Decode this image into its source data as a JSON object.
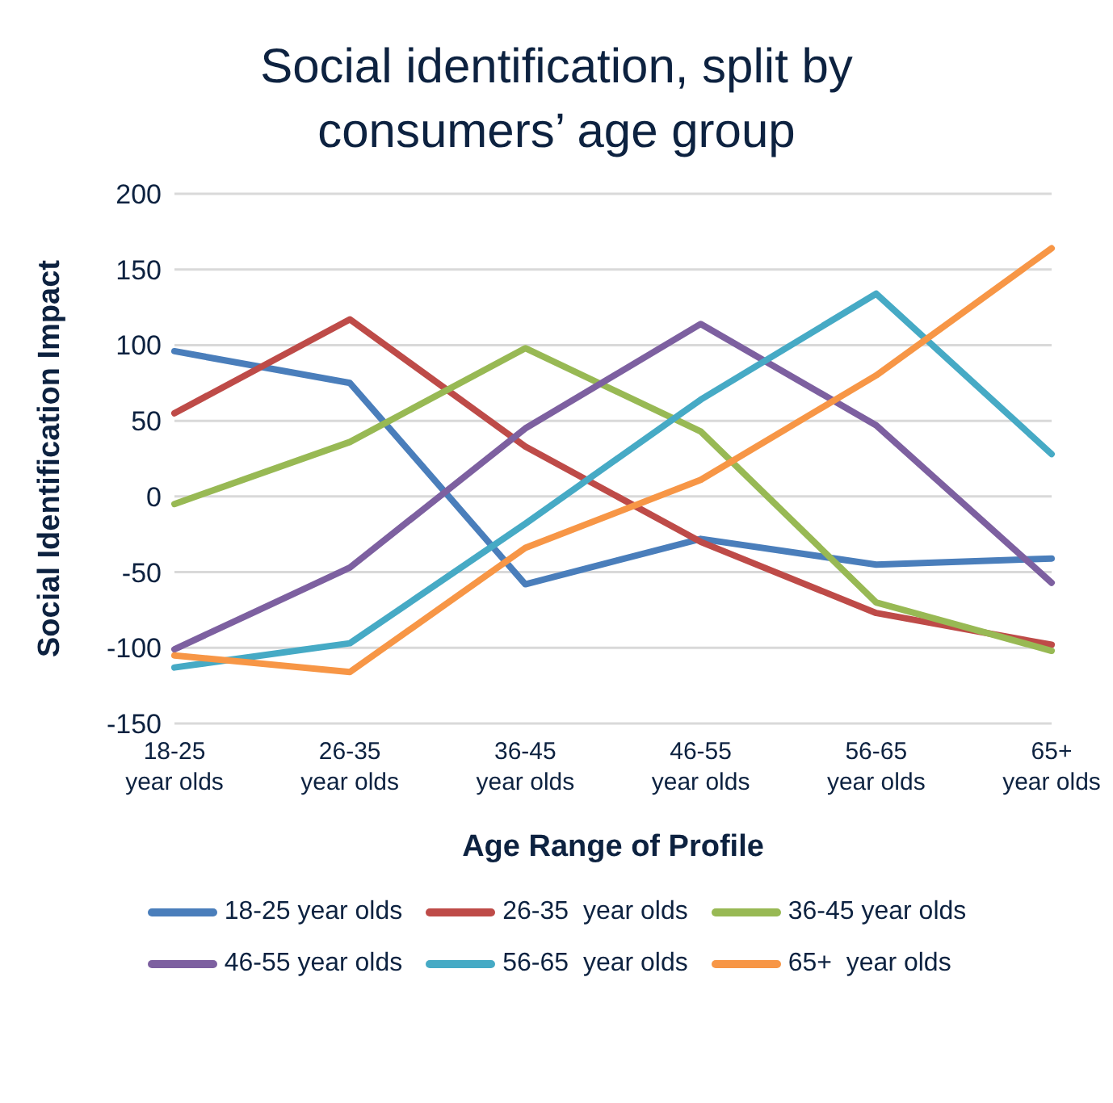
{
  "chart_data": {
    "type": "line",
    "title": "Social identification, split by consumers’ age group",
    "xlabel": "Age Range of Profile",
    "ylabel": "Social Identification Impact",
    "categories": [
      "18-25 year olds",
      "26-35 year olds",
      "36-45 year olds",
      "46-55 year olds",
      "56-65 year olds",
      "65+ year olds"
    ],
    "series": [
      {
        "name": "18-25 year olds",
        "color": "#4a7ebb",
        "values": [
          96,
          75,
          -58,
          -28,
          -45,
          -41
        ]
      },
      {
        "name": "26-35  year olds",
        "color": "#be4b48",
        "values": [
          55,
          117,
          33,
          -30,
          -77,
          -98
        ]
      },
      {
        "name": "36-45 year olds",
        "color": "#98b954",
        "values": [
          -5,
          36,
          98,
          43,
          -70,
          -102
        ]
      },
      {
        "name": "46-55 year olds",
        "color": "#7d60a0",
        "values": [
          -101,
          -47,
          45,
          114,
          47,
          -57
        ]
      },
      {
        "name": "56-65  year olds",
        "color": "#46aac5",
        "values": [
          -113,
          -97,
          -18,
          64,
          134,
          28
        ]
      },
      {
        "name": "65+  year olds",
        "color": "#f79646",
        "values": [
          -105,
          -116,
          -34,
          11,
          80,
          164
        ]
      }
    ],
    "ylim": [
      -150,
      200
    ],
    "yticks": [
      -150,
      -100,
      -50,
      0,
      50,
      100,
      150,
      200
    ],
    "grid": "y",
    "legend": "bottom",
    "marker": "none",
    "line_style": "solid"
  }
}
